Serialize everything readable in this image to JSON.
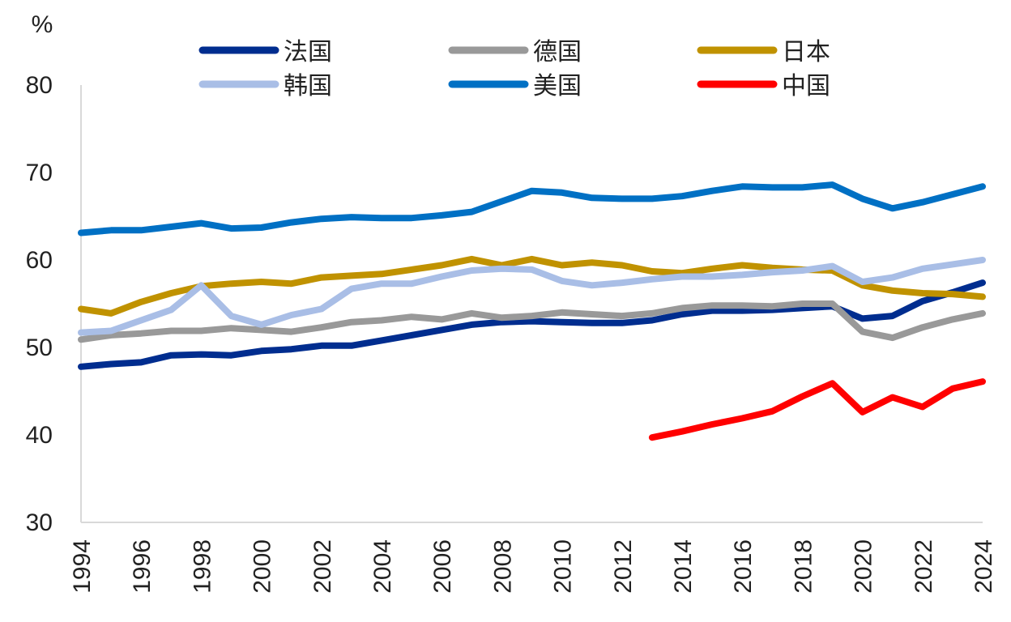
{
  "chart_data": {
    "type": "line",
    "title": "",
    "ylabel": "%",
    "xlabel": "",
    "ylim": [
      30,
      80
    ],
    "yticks": [
      30,
      40,
      50,
      60,
      70,
      80
    ],
    "xlim": [
      1994,
      2024
    ],
    "xticks": [
      1994,
      1996,
      1998,
      2000,
      2002,
      2004,
      2006,
      2008,
      2010,
      2012,
      2014,
      2016,
      2018,
      2020,
      2022,
      2024
    ],
    "grid": false,
    "legend_position": "top",
    "x": [
      1994,
      1995,
      1996,
      1997,
      1998,
      1999,
      2000,
      2001,
      2002,
      2003,
      2004,
      2005,
      2006,
      2007,
      2008,
      2009,
      2010,
      2011,
      2012,
      2013,
      2014,
      2015,
      2016,
      2017,
      2018,
      2019,
      2020,
      2021,
      2022,
      2023,
      2024
    ],
    "series": [
      {
        "name": "法国",
        "color": "#002D8F",
        "values": [
          47.8,
          48.1,
          48.3,
          49.1,
          49.2,
          49.1,
          49.6,
          49.8,
          50.2,
          50.2,
          50.8,
          51.4,
          52.0,
          52.6,
          52.9,
          53.0,
          52.9,
          52.8,
          52.8,
          53.1,
          53.8,
          54.2,
          54.2,
          54.3,
          54.5,
          54.7,
          53.3,
          53.6,
          55.3,
          56.3,
          57.4
        ]
      },
      {
        "name": "德国",
        "color": "#999999",
        "values": [
          50.9,
          51.4,
          51.6,
          51.9,
          51.9,
          52.2,
          52.0,
          51.8,
          52.3,
          52.9,
          53.1,
          53.5,
          53.2,
          53.9,
          53.4,
          53.6,
          54.0,
          53.8,
          53.6,
          53.9,
          54.5,
          54.8,
          54.8,
          54.7,
          55.0,
          55.0,
          51.8,
          51.1,
          52.3,
          53.2,
          53.9
        ]
      },
      {
        "name": "日本",
        "color": "#C09200",
        "values": [
          54.4,
          53.9,
          55.2,
          56.2,
          57.0,
          57.3,
          57.5,
          57.3,
          58.0,
          58.2,
          58.4,
          58.9,
          59.4,
          60.1,
          59.4,
          60.1,
          59.4,
          59.7,
          59.4,
          58.7,
          58.5,
          59.0,
          59.4,
          59.1,
          58.9,
          58.8,
          57.1,
          56.5,
          56.2,
          56.1,
          55.8
        ]
      },
      {
        "name": "韩国",
        "color": "#A9BEE6",
        "values": [
          51.7,
          51.9,
          53.1,
          54.3,
          57.1,
          53.6,
          52.6,
          53.7,
          54.4,
          56.7,
          57.3,
          57.3,
          58.1,
          58.8,
          59.0,
          58.9,
          57.6,
          57.1,
          57.4,
          57.8,
          58.1,
          58.1,
          58.3,
          58.6,
          58.8,
          59.3,
          57.5,
          58.0,
          59.0,
          59.5,
          60.0
        ]
      },
      {
        "name": "美国",
        "color": "#0070C4",
        "values": [
          63.1,
          63.4,
          63.4,
          63.8,
          64.2,
          63.6,
          63.7,
          64.3,
          64.7,
          64.9,
          64.8,
          64.8,
          65.1,
          65.5,
          66.7,
          67.9,
          67.7,
          67.1,
          67.0,
          67.0,
          67.3,
          67.9,
          68.4,
          68.3,
          68.3,
          68.6,
          67.0,
          65.9,
          66.6,
          67.5,
          68.4
        ]
      },
      {
        "name": "中国",
        "color": "#FF0000",
        "values": [
          null,
          null,
          null,
          null,
          null,
          null,
          null,
          null,
          null,
          null,
          null,
          null,
          null,
          null,
          null,
          null,
          null,
          null,
          null,
          39.7,
          40.4,
          41.2,
          41.9,
          42.7,
          44.4,
          45.9,
          42.6,
          44.3,
          43.2,
          45.3,
          46.1
        ]
      }
    ]
  }
}
